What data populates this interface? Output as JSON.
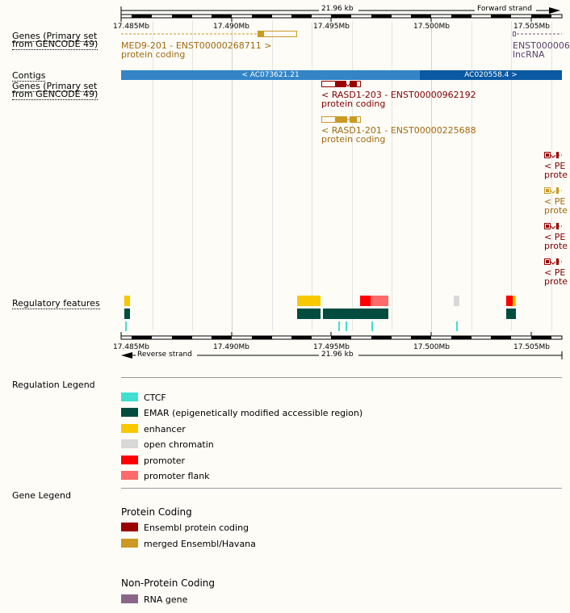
{
  "colors": {
    "ensembl_protein_coding": "#990000",
    "merged_ensembl_havana": "#cc9922",
    "lncrna": "#7a5c8a",
    "contig_a": "#3385c6",
    "contig_b": "#0b59a2",
    "ctcf": "#40e0d0",
    "emar": "#004c3f",
    "enhancer": "#f8c800",
    "open_chromatin": "#d8d8d8",
    "promoter": "#ff0000",
    "promoter_flank": "#ff6a6a",
    "rna_gene": "#8b668b"
  },
  "ruler": {
    "span_label": "21.96 kb",
    "forward_strand": "Forward strand",
    "reverse_strand": "Reverse strand",
    "ticks": [
      "17.485Mb",
      "17.490Mb",
      "17.495Mb",
      "17.500Mb",
      "17.505Mb"
    ]
  },
  "tracks": {
    "genes_forward_label": "Genes (Primary set from GENCODE 49)",
    "contigs_label": "Contigs",
    "genes_reverse_label": "Genes (Primary set from GENCODE 49)",
    "regulatory_label": "Regulatory features"
  },
  "forward_genes": [
    {
      "name": "MED9-201 - ENST00000268711 >",
      "biotype": "protein coding"
    },
    {
      "name": "ENST000006",
      "biotype": "lncRNA"
    }
  ],
  "contigs": [
    {
      "name": "< AC073621.21"
    },
    {
      "name": "AC020558.4 >"
    }
  ],
  "reverse_genes": [
    {
      "name": "< RASD1-203 - ENST00000962192",
      "biotype": "protein coding"
    },
    {
      "name": "< RASD1-201 - ENST00000225688",
      "biotype": "protein coding"
    },
    {
      "name": "< PE",
      "biotype": "prote"
    },
    {
      "name": "< PE",
      "biotype": "prote"
    },
    {
      "name": "< PE",
      "biotype": "prote"
    },
    {
      "name": "< PE",
      "biotype": "prote"
    }
  ],
  "regulation_legend": {
    "title": "Regulation Legend",
    "items": [
      {
        "label": "CTCF",
        "color": "#40e0d0"
      },
      {
        "label": "EMAR (epigenetically modified accessible region)",
        "color": "#004c3f"
      },
      {
        "label": "enhancer",
        "color": "#f8c800"
      },
      {
        "label": "open chromatin",
        "color": "#d8d8d8"
      },
      {
        "label": "promoter",
        "color": "#ff0000"
      },
      {
        "label": "promoter flank",
        "color": "#ff6a6a"
      }
    ]
  },
  "gene_legend": {
    "title": "Gene Legend",
    "protein_coding_title": "Protein Coding",
    "protein_coding_items": [
      {
        "label": "Ensembl protein coding",
        "color": "#990000"
      },
      {
        "label": "merged Ensembl/Havana",
        "color": "#cc9922"
      }
    ],
    "non_protein_coding_title": "Non-Protein Coding",
    "non_protein_coding_items": [
      {
        "label": "RNA gene",
        "color": "#8b668b"
      }
    ]
  }
}
